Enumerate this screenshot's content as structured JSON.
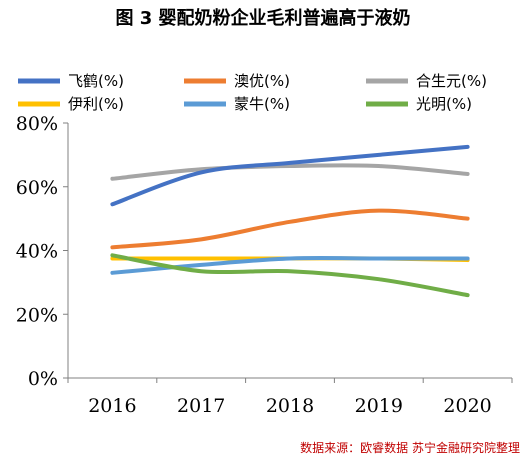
{
  "chart_data": {
    "type": "line",
    "title": "图 3  婴配奶粉企业毛利普遍高于液奶",
    "categories": [
      "2016",
      "2017",
      "2018",
      "2019",
      "2020"
    ],
    "ylim": [
      0,
      80
    ],
    "yticks": [
      "0%",
      "20%",
      "40%",
      "60%",
      "80%"
    ],
    "grid": false,
    "legend_position": "top",
    "series": [
      {
        "name": "飞鹤(%)",
        "color": "#4472c4",
        "values": [
          54.5,
          64.5,
          67.5,
          70,
          72.5
        ]
      },
      {
        "name": "澳优(%)",
        "color": "#ed7d31",
        "values": [
          41,
          43.5,
          49,
          52.5,
          50
        ]
      },
      {
        "name": "合生元(%)",
        "color": "#a5a5a5",
        "values": [
          62.5,
          65.5,
          66.5,
          66.5,
          64
        ]
      },
      {
        "name": "伊利(%)",
        "color": "#ffc000",
        "values": [
          37.5,
          37.5,
          37.5,
          37.5,
          37
        ]
      },
      {
        "name": "蒙牛(%)",
        "color": "#5b9bd5",
        "values": [
          33,
          35.5,
          37.5,
          37.5,
          37.5
        ]
      },
      {
        "name": "光明(%)",
        "color": "#70ad47",
        "values": [
          38.5,
          33.5,
          33.5,
          31,
          26
        ]
      }
    ]
  },
  "source": "数据来源：欧睿数据 苏宁金融研究院整理"
}
